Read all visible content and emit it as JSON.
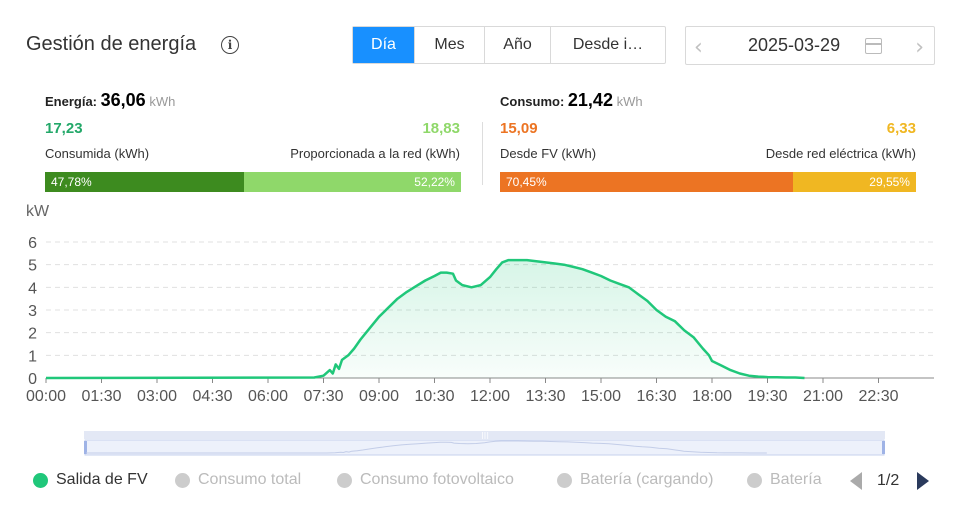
{
  "header": {
    "title": "Gestión de energía",
    "info_icon": "info-icon"
  },
  "tabs": [
    {
      "label": "Día",
      "active": true
    },
    {
      "label": "Mes",
      "active": false
    },
    {
      "label": "Año",
      "active": false
    },
    {
      "label": "Desde i…",
      "active": false
    }
  ],
  "date_picker": {
    "prev": "‹",
    "value": "2025-03-29",
    "next": "›",
    "calendar_icon": "calendar-icon"
  },
  "energy": {
    "label": "Energía:",
    "total": "36,06",
    "unit": "kWh",
    "consumed_value": "17,23",
    "consumed_label": "Consumida (kWh)",
    "grid_value": "18,83",
    "grid_label": "Proporcionada a la red (kWh)",
    "consumed_percent": "47,78%",
    "grid_percent": "52,22%",
    "consumed_fraction": 0.4778,
    "consumed_color": "#3d8b1f",
    "grid_color": "#8fd86a"
  },
  "consumption": {
    "label": "Consumo:",
    "total": "21,42",
    "unit": "kWh",
    "pv_value": "15,09",
    "pv_label": "Desde FV (kWh)",
    "grid_value": "6,33",
    "grid_label": "Desde red eléctrica (kWh)",
    "pv_percent": "70,45%",
    "grid_percent": "29,55%",
    "pv_fraction": 0.7045,
    "pv_color": "#ec7423",
    "grid_color": "#f0b722"
  },
  "chart_data": {
    "type": "area",
    "ylabel": "kW",
    "ylim": [
      0,
      6
    ],
    "yticks": [
      "0",
      "1",
      "2",
      "3",
      "4",
      "5",
      "6"
    ],
    "xlim": [
      0,
      24
    ],
    "xticks": [
      "00:00",
      "01:30",
      "03:00",
      "04:30",
      "06:00",
      "07:30",
      "09:00",
      "10:30",
      "12:00",
      "13:30",
      "15:00",
      "16:30",
      "18:00",
      "19:30",
      "21:00",
      "22:30"
    ],
    "grid": true,
    "series": [
      {
        "name": "Salida de FV",
        "color": "#20c77a",
        "x": [
          0,
          7.25,
          7.5,
          7.67,
          7.75,
          7.83,
          7.92,
          8.0,
          8.17,
          8.33,
          8.5,
          8.75,
          9.0,
          9.25,
          9.5,
          9.75,
          10.0,
          10.25,
          10.5,
          10.67,
          10.83,
          11.0,
          11.08,
          11.25,
          11.5,
          11.75,
          12.0,
          12.17,
          12.33,
          12.5,
          12.75,
          13.0,
          13.25,
          13.5,
          13.75,
          14.0,
          14.25,
          14.5,
          14.75,
          15.0,
          15.25,
          15.5,
          15.75,
          16.0,
          16.25,
          16.5,
          16.75,
          17.0,
          17.25,
          17.5,
          17.75,
          17.92,
          18.0,
          18.25,
          18.5,
          18.75,
          19.0,
          19.25,
          19.5,
          19.75,
          20.0,
          20.25,
          20.5
        ],
        "y": [
          0,
          0.02,
          0.1,
          0.35,
          0.2,
          0.6,
          0.4,
          0.8,
          1.0,
          1.3,
          1.7,
          2.2,
          2.7,
          3.1,
          3.5,
          3.8,
          4.05,
          4.3,
          4.5,
          4.65,
          4.65,
          4.6,
          4.3,
          4.1,
          4.0,
          4.1,
          4.45,
          4.8,
          5.1,
          5.2,
          5.2,
          5.2,
          5.15,
          5.1,
          5.05,
          5.0,
          4.9,
          4.8,
          4.65,
          4.5,
          4.3,
          4.15,
          4.0,
          3.7,
          3.4,
          3.0,
          2.7,
          2.5,
          2.1,
          1.8,
          1.3,
          1.0,
          0.75,
          0.55,
          0.35,
          0.2,
          0.1,
          0.06,
          0.04,
          0.03,
          0.02,
          0.02,
          0
        ]
      }
    ]
  },
  "legend": [
    {
      "label": "Salida de FV",
      "color": "#20c77a",
      "active": true
    },
    {
      "label": "Consumo total",
      "color": "#cccccc",
      "active": false
    },
    {
      "label": "Consumo fotovoltaico",
      "color": "#cccccc",
      "active": false
    },
    {
      "label": "Batería (cargando)",
      "color": "#cccccc",
      "active": false
    },
    {
      "label": "Batería",
      "color": "#cccccc",
      "active": false
    }
  ],
  "pager": {
    "text": "1/2"
  }
}
